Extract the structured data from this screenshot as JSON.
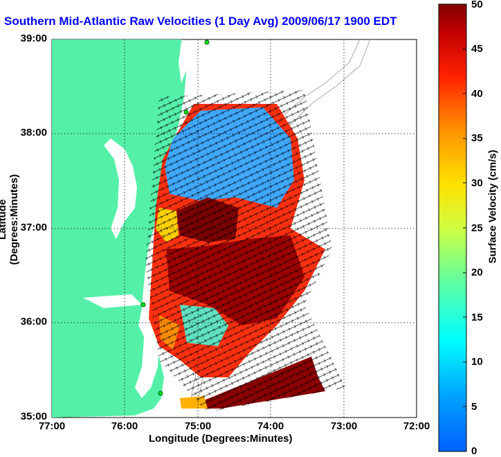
{
  "title": "Southern Mid-Atlantic Raw Velocities (1 Day Avg) 2009/06/17 1900 EDT",
  "axes": {
    "xlabel": "Longitude (Degrees:Minutes)",
    "ylabel": "Latitude (Degrees:Minutes)",
    "xticks": [
      "77:00",
      "76:00",
      "75:00",
      "74:00",
      "73:00",
      "72:00"
    ],
    "yticks": [
      "39:00",
      "38:00",
      "37:00",
      "36:00",
      "35:00"
    ]
  },
  "colorbar": {
    "label": "Surface Velocity (cm/s)",
    "ticks": [
      "50",
      "45",
      "40",
      "35",
      "30",
      "25",
      "20",
      "15",
      "10",
      "5",
      "0"
    ],
    "range": [
      0,
      50
    ]
  },
  "colors": {
    "land": "#55f0a8",
    "title": "#0000ff",
    "grid": "#000000",
    "bathymetry": "#a8a8a8"
  }
}
